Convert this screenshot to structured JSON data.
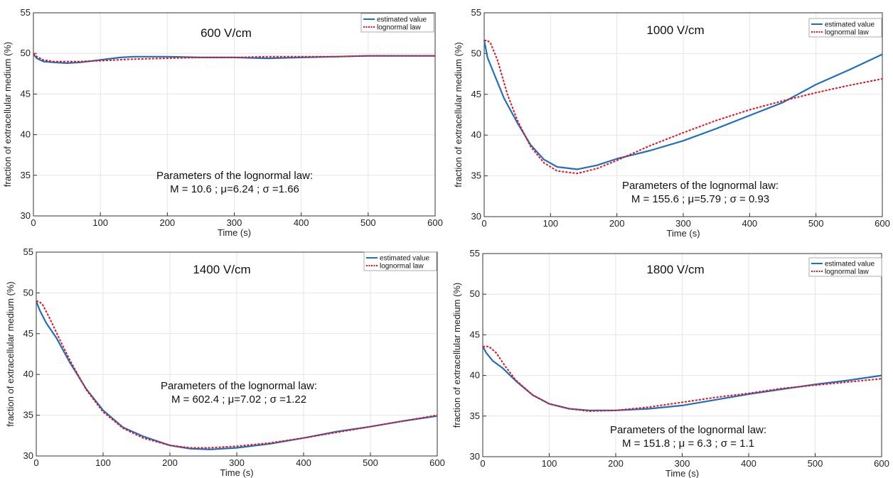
{
  "colors": {
    "estimated": "#1f6fc0",
    "lognormal": "#e8101a",
    "grid": "#e6e6e6",
    "axis": "#333333"
  },
  "chart_data": [
    {
      "type": "line",
      "title": "600 V/cm",
      "xlabel": "Time (s)",
      "ylabel": "fraction of extracellular medium (%)",
      "xlim": [
        0,
        600
      ],
      "ylim": [
        30,
        55
      ],
      "xticks": [
        0,
        100,
        200,
        300,
        400,
        500,
        600
      ],
      "yticks": [
        30,
        35,
        40,
        45,
        50,
        55
      ],
      "grid": true,
      "legend": "top-right",
      "annotation": [
        "Parameters of the lognormal law:",
        "M = 10.6 ; μ=6.24 ; σ =1.66"
      ],
      "series": [
        {
          "name": "estimated value",
          "style": "solid",
          "x": [
            0,
            5,
            15,
            30,
            50,
            70,
            100,
            130,
            150,
            200,
            250,
            300,
            350,
            400,
            450,
            500,
            550,
            600
          ],
          "y": [
            49.9,
            49.4,
            49.0,
            48.9,
            48.8,
            48.9,
            49.2,
            49.5,
            49.6,
            49.6,
            49.5,
            49.5,
            49.4,
            49.5,
            49.6,
            49.7,
            49.7,
            49.7
          ]
        },
        {
          "name": "lognormal law",
          "style": "dashed",
          "x": [
            0,
            5,
            15,
            30,
            50,
            70,
            100,
            150,
            200,
            250,
            300,
            350,
            400,
            450,
            500,
            550,
            600
          ],
          "y": [
            50.0,
            49.6,
            49.2,
            49.0,
            49.0,
            49.0,
            49.1,
            49.3,
            49.4,
            49.5,
            49.5,
            49.6,
            49.6,
            49.6,
            49.7,
            49.7,
            49.7
          ]
        }
      ]
    },
    {
      "type": "line",
      "title": "1000 V/cm",
      "xlabel": "Time (s)",
      "ylabel": "fraction of extracellular medium (%)",
      "xlim": [
        0,
        600
      ],
      "ylim": [
        30,
        55
      ],
      "xticks": [
        0,
        100,
        200,
        300,
        400,
        500,
        600
      ],
      "yticks": [
        30,
        35,
        40,
        45,
        50,
        55
      ],
      "grid": true,
      "legend": "top-right",
      "annotation": [
        "Parameters of the lognormal law:",
        "M = 155.6 ; μ=5.79 ; σ = 0.93"
      ],
      "series": [
        {
          "name": "estimated value",
          "style": "solid",
          "x": [
            0,
            5,
            15,
            30,
            50,
            70,
            90,
            110,
            140,
            170,
            200,
            250,
            300,
            350,
            400,
            450,
            500,
            550,
            600
          ],
          "y": [
            51.6,
            49.5,
            47.5,
            44.5,
            41.5,
            38.8,
            37.0,
            36.1,
            35.8,
            36.3,
            37.1,
            38.1,
            39.3,
            40.8,
            42.4,
            44.0,
            46.2,
            48.0,
            49.9
          ]
        },
        {
          "name": "lognormal law",
          "style": "dashed",
          "x": [
            0,
            5,
            10,
            20,
            35,
            50,
            70,
            90,
            110,
            140,
            170,
            200,
            250,
            300,
            350,
            400,
            450,
            500,
            550,
            600
          ],
          "y": [
            51.6,
            51.6,
            51.2,
            49.2,
            45.0,
            41.8,
            38.6,
            36.6,
            35.6,
            35.3,
            35.9,
            36.9,
            38.7,
            40.3,
            41.8,
            43.1,
            44.2,
            45.2,
            46.1,
            46.9
          ]
        }
      ]
    },
    {
      "type": "line",
      "title": "1400 V/cm",
      "xlabel": "Time (s)",
      "ylabel": "fraction of extracellular medium (%)",
      "xlim": [
        0,
        600
      ],
      "ylim": [
        30,
        55
      ],
      "xticks": [
        0,
        100,
        200,
        300,
        400,
        500,
        600
      ],
      "yticks": [
        30,
        35,
        40,
        45,
        50,
        55
      ],
      "grid": true,
      "legend": "top-right",
      "annotation": [
        "Parameters of the lognormal law:",
        "M = 602.4 ; μ=7.02 ; σ =1.22"
      ],
      "series": [
        {
          "name": "estimated value",
          "style": "solid",
          "x": [
            0,
            5,
            15,
            30,
            50,
            75,
            100,
            130,
            160,
            200,
            230,
            260,
            300,
            350,
            400,
            450,
            500,
            550,
            600
          ],
          "y": [
            49.0,
            47.9,
            46.3,
            44.5,
            41.5,
            38.2,
            35.6,
            33.5,
            32.4,
            31.3,
            30.9,
            30.8,
            31.0,
            31.5,
            32.2,
            33.0,
            33.6,
            34.3,
            34.9
          ]
        },
        {
          "name": "lognormal law",
          "style": "dashed",
          "x": [
            0,
            5,
            10,
            20,
            35,
            50,
            75,
            100,
            130,
            160,
            200,
            230,
            260,
            300,
            350,
            400,
            450,
            500,
            550,
            600
          ],
          "y": [
            49.0,
            48.9,
            48.5,
            46.9,
            44.3,
            41.8,
            38.1,
            35.4,
            33.4,
            32.2,
            31.3,
            31.0,
            31.0,
            31.2,
            31.6,
            32.2,
            32.9,
            33.6,
            34.3,
            35.0
          ]
        }
      ]
    },
    {
      "type": "line",
      "title": "1800 V/cm",
      "xlabel": "Time (s)",
      "ylabel": "fraction of extracellular medium (%)",
      "xlim": [
        0,
        600
      ],
      "ylim": [
        30,
        55
      ],
      "xticks": [
        0,
        100,
        200,
        300,
        400,
        500,
        600
      ],
      "yticks": [
        30,
        35,
        40,
        45,
        50,
        55
      ],
      "grid": true,
      "legend": "top-right",
      "annotation": [
        "Parameters of the lognormal law:",
        "M = 151.8 ; μ = 6.3 ; σ = 1.1"
      ],
      "series": [
        {
          "name": "estimated value",
          "style": "solid",
          "x": [
            0,
            5,
            15,
            30,
            50,
            75,
            100,
            130,
            160,
            200,
            250,
            300,
            350,
            400,
            450,
            500,
            550,
            600
          ],
          "y": [
            43.6,
            42.8,
            41.8,
            40.9,
            39.3,
            37.6,
            36.5,
            35.9,
            35.7,
            35.7,
            35.9,
            36.3,
            37.0,
            37.7,
            38.3,
            38.9,
            39.4,
            40.0
          ]
        },
        {
          "name": "lognormal law",
          "style": "dashed",
          "x": [
            0,
            5,
            10,
            20,
            35,
            50,
            75,
            100,
            130,
            160,
            200,
            250,
            300,
            350,
            400,
            450,
            500,
            550,
            600
          ],
          "y": [
            43.5,
            43.6,
            43.5,
            42.8,
            41.0,
            39.4,
            37.6,
            36.5,
            35.9,
            35.6,
            35.7,
            36.1,
            36.7,
            37.3,
            37.8,
            38.4,
            38.8,
            39.2,
            39.6
          ]
        }
      ]
    }
  ]
}
